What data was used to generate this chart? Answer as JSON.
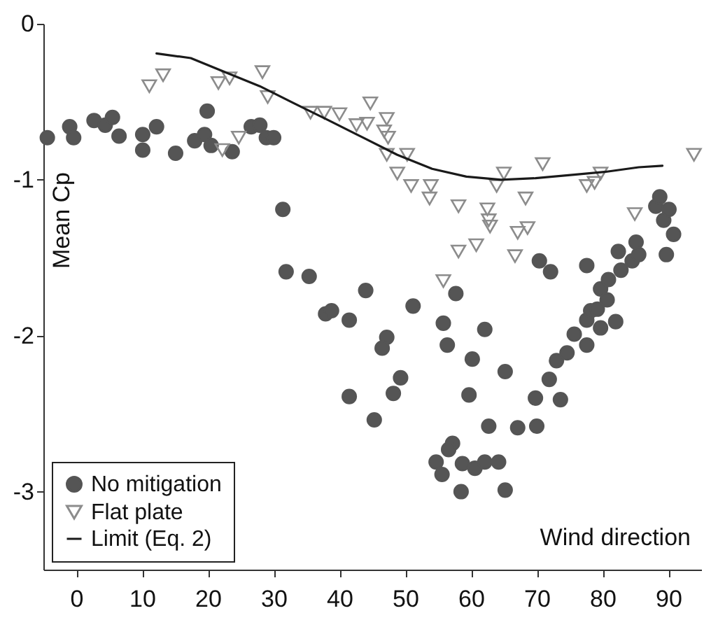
{
  "chart_data": {
    "type": "scatter",
    "xlabel": "Wind direction",
    "ylabel": "Mean Cp",
    "xlim": [
      -5,
      95
    ],
    "ylim": [
      -3.5,
      0
    ],
    "xticks": [
      0,
      10,
      20,
      30,
      40,
      50,
      60,
      70,
      80,
      90
    ],
    "yticks": [
      0,
      -1,
      -2,
      -3
    ],
    "legend": "bottom left",
    "grid": false,
    "series": [
      {
        "name": "No mitigation",
        "color": "#555555",
        "marker": "circle",
        "x": [
          -4.4,
          -1.0,
          -0.4,
          2.7,
          4.4,
          5.5,
          6.5,
          10.1,
          10.1,
          12.2,
          15.1,
          18.0,
          19.5,
          19.9,
          20.5,
          23.7,
          26.6,
          27.9,
          28.9,
          30.0,
          31.4,
          31.9,
          35.4,
          37.9,
          38.8,
          41.5,
          44.0,
          41.5,
          45.3,
          47.2,
          46.5,
          48.2,
          49.3,
          51.2,
          55.8,
          56.4,
          57.7,
          60.2,
          59.7,
          62.1,
          65.2,
          62.7,
          57.2,
          56.6,
          54.7,
          55.6,
          58.7,
          60.6,
          62.1,
          64.2,
          58.5,
          65.2,
          67.1,
          69.8,
          70.0,
          71.9,
          73.6,
          73.0,
          74.6,
          75.7,
          77.6,
          77.6,
          79.7,
          82.0,
          78.2,
          79.7,
          80.9,
          82.8,
          84.5,
          70.4,
          72.1,
          77.6,
          82.4,
          85.1,
          85.5,
          89.7,
          90.8,
          88.1,
          89.3,
          88.7,
          90.1,
          80.7,
          79.2
        ],
        "values": [
          -0.73,
          -0.66,
          -0.73,
          -0.62,
          -0.65,
          -0.6,
          -0.72,
          -0.71,
          -0.81,
          -0.66,
          -0.83,
          -0.75,
          -0.71,
          -0.56,
          -0.78,
          -0.82,
          -0.66,
          -0.65,
          -0.73,
          -0.73,
          -1.19,
          -1.59,
          -1.62,
          -1.86,
          -1.84,
          -1.9,
          -1.71,
          -2.39,
          -2.54,
          -2.01,
          -2.08,
          -2.37,
          -2.27,
          -1.81,
          -1.92,
          -2.06,
          -1.73,
          -2.15,
          -2.38,
          -1.96,
          -2.23,
          -2.58,
          -2.69,
          -2.73,
          -2.81,
          -2.89,
          -2.82,
          -2.85,
          -2.81,
          -2.81,
          -3.0,
          -2.99,
          -2.59,
          -2.4,
          -2.58,
          -2.28,
          -2.41,
          -2.16,
          -2.11,
          -1.99,
          -2.06,
          -1.9,
          -1.95,
          -1.91,
          -1.84,
          -1.7,
          -1.64,
          -1.58,
          -1.52,
          -1.52,
          -1.59,
          -1.55,
          -1.46,
          -1.4,
          -1.48,
          -1.48,
          -1.35,
          -1.17,
          -1.26,
          -1.11,
          -1.19,
          -1.77,
          -1.83
        ]
      },
      {
        "name": "Flat plate",
        "color": "#8c8c8c",
        "marker": "triangle",
        "x": [
          11.1,
          13.2,
          21.6,
          23.3,
          24.7,
          22.2,
          28.3,
          29.1,
          35.6,
          37.7,
          40.0,
          44.7,
          42.6,
          44.2,
          47.2,
          46.8,
          47.4,
          47.2,
          50.3,
          48.8,
          50.9,
          53.9,
          53.7,
          58.1,
          62.5,
          62.7,
          62.9,
          60.8,
          58.1,
          55.8,
          65.0,
          63.9,
          70.9,
          68.3,
          68.6,
          67.1,
          66.7,
          77.6,
          78.8,
          79.7,
          84.9,
          93.9
        ],
        "values": [
          -0.4,
          -0.33,
          -0.38,
          -0.35,
          -0.73,
          -0.81,
          -0.31,
          -0.47,
          -0.57,
          -0.57,
          -0.58,
          -0.51,
          -0.65,
          -0.64,
          -0.61,
          -0.69,
          -0.73,
          -0.84,
          -0.84,
          -0.96,
          -1.04,
          -1.04,
          -1.12,
          -1.17,
          -1.19,
          -1.26,
          -1.3,
          -1.42,
          -1.46,
          -1.65,
          -0.96,
          -1.04,
          -0.9,
          -1.12,
          -1.31,
          -1.34,
          -1.49,
          -1.04,
          -1.02,
          -0.96,
          -1.22,
          -0.84
        ]
      },
      {
        "name": "Limit (Eq. 2)",
        "type": "line",
        "color": "#1a1a1a",
        "line_style": "solid",
        "marker": "none",
        "x": [
          12.2,
          17.4,
          22.6,
          27.9,
          33.1,
          38.4,
          43.6,
          48.8,
          54.1,
          59.3,
          64.6,
          69.8,
          75.1,
          80.3,
          85.5,
          89.1
        ],
        "values": [
          -0.19,
          -0.22,
          -0.31,
          -0.4,
          -0.51,
          -0.62,
          -0.73,
          -0.84,
          -0.93,
          -0.98,
          -1.0,
          -0.99,
          -0.97,
          -0.95,
          -0.92,
          -0.91
        ]
      }
    ]
  }
}
